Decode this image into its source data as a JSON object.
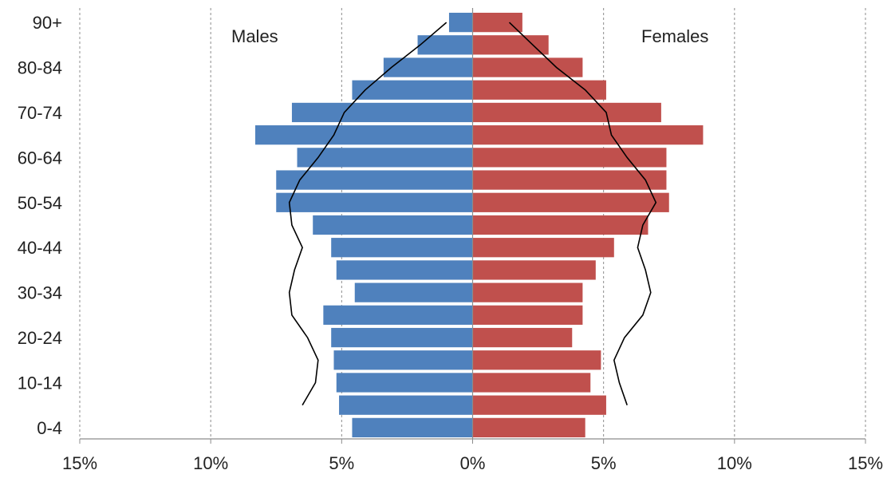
{
  "chart_data": {
    "type": "bar",
    "orientation": "horizontal",
    "layout": "population-pyramid",
    "categories": [
      "0-4",
      "5-9",
      "10-14",
      "15-19",
      "20-24",
      "25-29",
      "30-34",
      "35-39",
      "40-44",
      "45-49",
      "50-54",
      "55-59",
      "60-64",
      "65-69",
      "70-74",
      "75-79",
      "80-84",
      "85-89",
      "90+"
    ],
    "y_tick_labels": [
      "0-4",
      "10-14",
      "20-24",
      "30-34",
      "40-44",
      "50-54",
      "60-64",
      "70-74",
      "80-84",
      "90+"
    ],
    "x_tick_labels": [
      "15%",
      "10%",
      "5%",
      "0%",
      "5%",
      "10%",
      "15%"
    ],
    "x_tick_values": [
      -15,
      -10,
      -5,
      0,
      5,
      10,
      15
    ],
    "xlim": [
      -15,
      15
    ],
    "grid": "vertical dashed",
    "series": [
      {
        "name": "Males",
        "side": "left",
        "color": "#4F81BD",
        "values": [
          4.6,
          5.1,
          5.2,
          5.3,
          5.4,
          5.7,
          4.5,
          5.2,
          5.4,
          6.1,
          7.5,
          7.5,
          6.7,
          8.3,
          6.9,
          4.6,
          3.4,
          2.1,
          0.9
        ]
      },
      {
        "name": "Females",
        "side": "right",
        "color": "#C0504D",
        "values": [
          4.3,
          5.1,
          4.5,
          4.9,
          3.8,
          4.2,
          4.2,
          4.7,
          5.4,
          6.7,
          7.5,
          7.4,
          7.4,
          8.8,
          7.2,
          5.1,
          4.2,
          2.9,
          1.9
        ]
      }
    ],
    "reference_line": {
      "color": "#000000",
      "males": [
        null,
        6.5,
        6.0,
        5.9,
        6.3,
        6.9,
        7.0,
        6.8,
        6.5,
        6.9,
        7.0,
        6.6,
        5.9,
        5.3,
        4.9,
        4.1,
        3.1,
        2.0,
        1.0
      ],
      "females": [
        null,
        5.9,
        5.6,
        5.4,
        5.8,
        6.5,
        6.8,
        6.6,
        6.3,
        6.5,
        7.0,
        6.6,
        5.9,
        5.3,
        5.1,
        4.3,
        3.2,
        2.3,
        1.4
      ]
    },
    "annotations": [
      "Males",
      "Females"
    ]
  }
}
